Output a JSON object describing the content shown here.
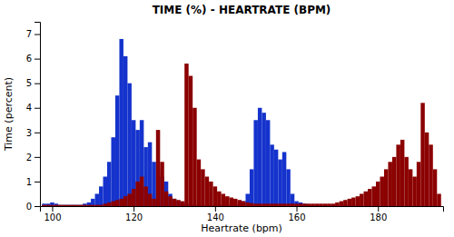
{
  "chart_data": {
    "type": "bar",
    "title": "TIME (%) - HEARTRATE (BPM)",
    "x_label": "Heartrate (bpm)",
    "y_label": "Time (percent)",
    "x": [
      98,
      99,
      100,
      101,
      102,
      103,
      104,
      105,
      106,
      107,
      108,
      109,
      110,
      111,
      112,
      113,
      114,
      115,
      116,
      117,
      118,
      119,
      120,
      121,
      122,
      123,
      124,
      125,
      126,
      127,
      128,
      129,
      130,
      131,
      132,
      133,
      134,
      135,
      136,
      137,
      138,
      139,
      140,
      141,
      142,
      143,
      144,
      145,
      146,
      147,
      148,
      149,
      150,
      151,
      152,
      153,
      154,
      155,
      156,
      157,
      158,
      159,
      160,
      161,
      162,
      163,
      164,
      165,
      166,
      167,
      168,
      169,
      170,
      171,
      172,
      173,
      174,
      175,
      176,
      177,
      178,
      179,
      180,
      181,
      182,
      183,
      184,
      185,
      186,
      187,
      188,
      189,
      190,
      191,
      192,
      193,
      194,
      195
    ],
    "series": [
      {
        "color": "#1533cc",
        "values": [
          0.1,
          0.1,
          0.15,
          0.1,
          0.05,
          0.05,
          0.05,
          0.05,
          0.05,
          0.05,
          0.1,
          0.15,
          0.3,
          0.5,
          0.8,
          1.2,
          1.8,
          2.8,
          4.5,
          6.8,
          6.1,
          5.0,
          3.5,
          3.1,
          3.5,
          2.4,
          2.6,
          1.8,
          1.5,
          1.2,
          1.0,
          0.5,
          0.3,
          0.2,
          0.15,
          0.1,
          0.08,
          0.05,
          0.05,
          0.05,
          0.05,
          0.05,
          0.05,
          0.05,
          0.05,
          0.05,
          0.05,
          0.05,
          0.1,
          0.2,
          0.5,
          1.5,
          3.5,
          4.0,
          3.8,
          3.5,
          2.5,
          2.3,
          1.9,
          2.2,
          1.5,
          0.5,
          0.2,
          0.15,
          0.1,
          0.05,
          0.05,
          0.05,
          0.05,
          0.05,
          0.05,
          0.05,
          0.05,
          0.05,
          0.05,
          0.05,
          0.05,
          0.0,
          0.0,
          0.0,
          0.0,
          0.0,
          0.0,
          0.0,
          0.0,
          0.0,
          0.0,
          0.0,
          0.0,
          0.0,
          0.0,
          0.0,
          0.0,
          0.0,
          0.0,
          0.0,
          0.0,
          0.0
        ]
      },
      {
        "color": "#8b0000",
        "values": [
          0.05,
          0.05,
          0.05,
          0.05,
          0.05,
          0.05,
          0.05,
          0.05,
          0.05,
          0.05,
          0.05,
          0.05,
          0.05,
          0.05,
          0.05,
          0.1,
          0.15,
          0.2,
          0.25,
          0.3,
          0.4,
          0.5,
          0.7,
          1.0,
          1.2,
          0.8,
          0.5,
          0.3,
          3.1,
          1.8,
          0.6,
          0.4,
          0.3,
          0.25,
          0.2,
          5.8,
          5.3,
          4.0,
          1.9,
          1.5,
          1.2,
          1.0,
          0.8,
          0.6,
          0.5,
          0.4,
          0.35,
          0.3,
          0.25,
          0.2,
          0.15,
          0.12,
          0.1,
          0.1,
          0.1,
          0.1,
          0.1,
          0.1,
          0.1,
          0.1,
          0.1,
          0.1,
          0.1,
          0.1,
          0.1,
          0.1,
          0.1,
          0.1,
          0.1,
          0.1,
          0.1,
          0.1,
          0.15,
          0.2,
          0.25,
          0.3,
          0.35,
          0.4,
          0.5,
          0.6,
          0.7,
          0.8,
          1.0,
          1.2,
          1.5,
          1.8,
          2.0,
          2.5,
          2.7,
          2.0,
          1.5,
          1.2,
          1.8,
          4.2,
          3.0,
          2.5,
          1.5,
          0.5
        ]
      }
    ],
    "xlim": [
      97,
      196
    ],
    "ylim": [
      0,
      7.5
    ],
    "xticks": [
      100,
      120,
      140,
      160,
      180
    ],
    "yticks": [
      0,
      1,
      2,
      3,
      4,
      5,
      6,
      7
    ],
    "grid": false
  }
}
